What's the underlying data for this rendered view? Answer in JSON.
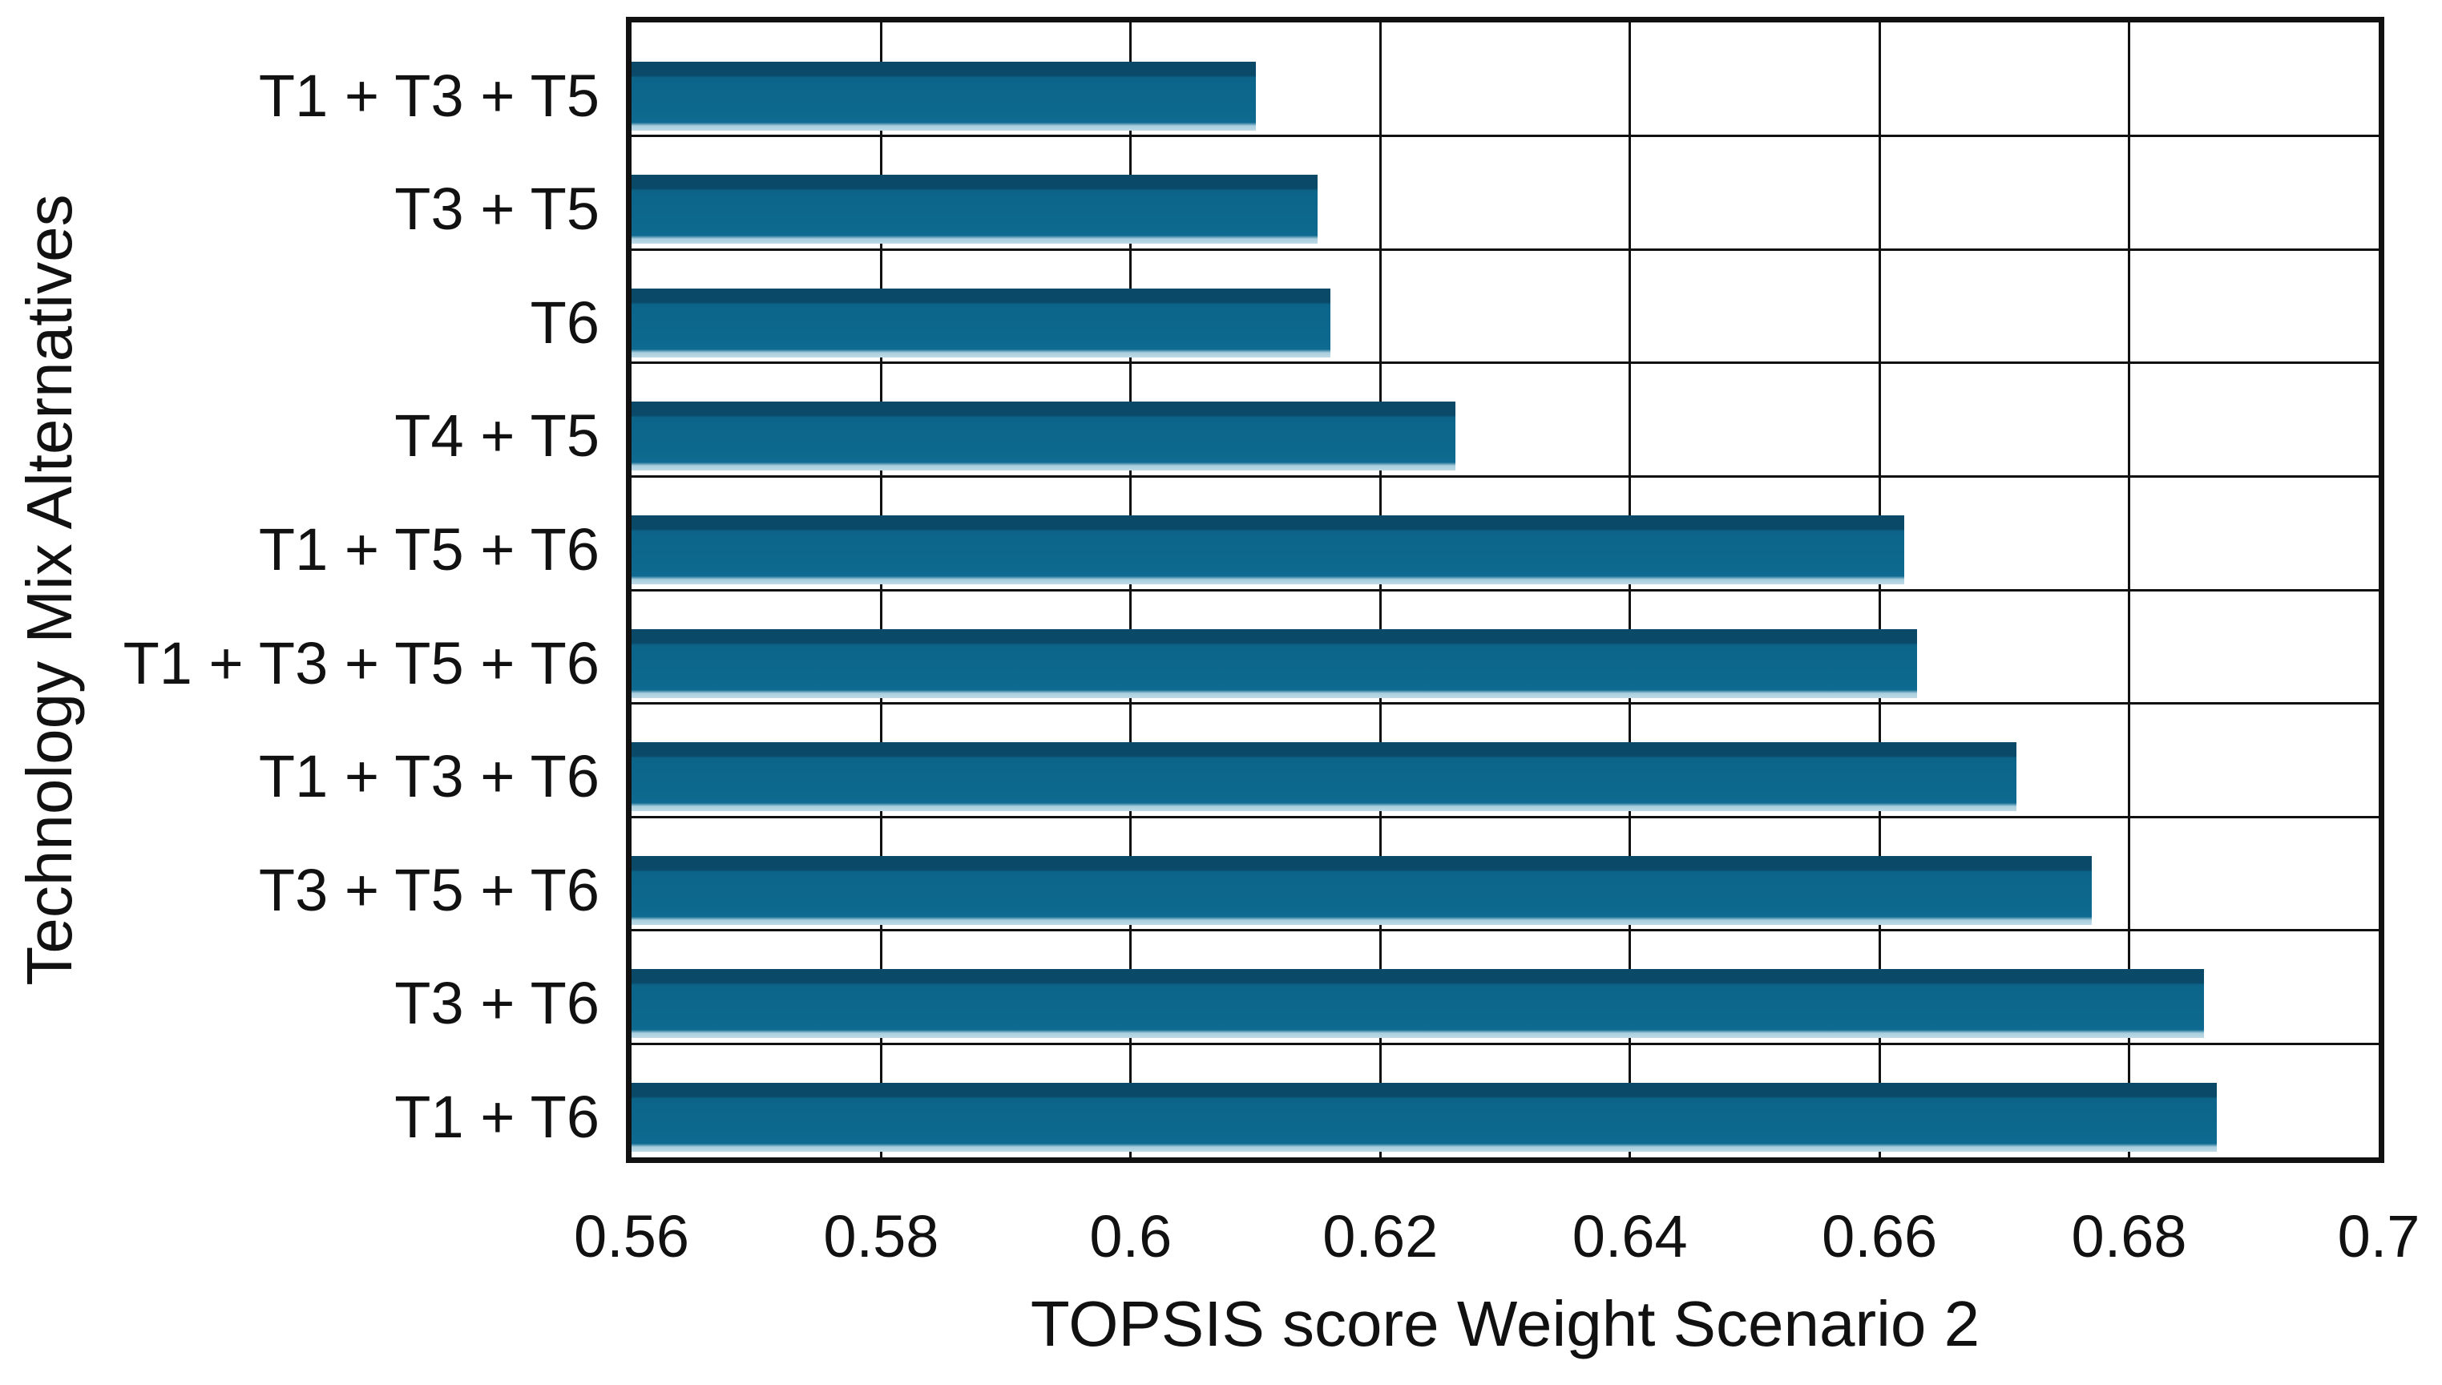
{
  "chart_data": {
    "type": "bar",
    "orientation": "horizontal",
    "xlabel": "TOPSIS score Weight Scenario 2",
    "ylabel": "Technology Mix Alternatives",
    "categories": [
      "T1 + T3 + T5",
      "T3 + T5",
      "T6",
      "T4 + T5",
      "T1 + T5 + T6",
      "T1 + T3 + T5 + T6",
      "T1 + T3 + T6",
      "T3 + T5 + T6",
      "T3 + T6",
      "T1 + T6"
    ],
    "values": [
      0.61,
      0.615,
      0.616,
      0.626,
      0.662,
      0.663,
      0.671,
      0.677,
      0.686,
      0.687
    ],
    "xlim": [
      0.56,
      0.7
    ],
    "xticks": [
      0.56,
      0.58,
      0.6,
      0.62,
      0.64,
      0.66,
      0.68,
      0.7
    ],
    "xtick_labels": [
      "0.56",
      "0.58",
      "0.6",
      "0.62",
      "0.64",
      "0.66",
      "0.68",
      "0.7"
    ],
    "grid": true,
    "legend": false,
    "colors": {
      "bar_top_bevel": "#0a4a68",
      "bar_body": "#0e6a90",
      "bar_bottom_highlight": "#a9cede",
      "gridline": "#111111",
      "border": "#111111",
      "text": "#111111",
      "background": "#ffffff"
    }
  }
}
